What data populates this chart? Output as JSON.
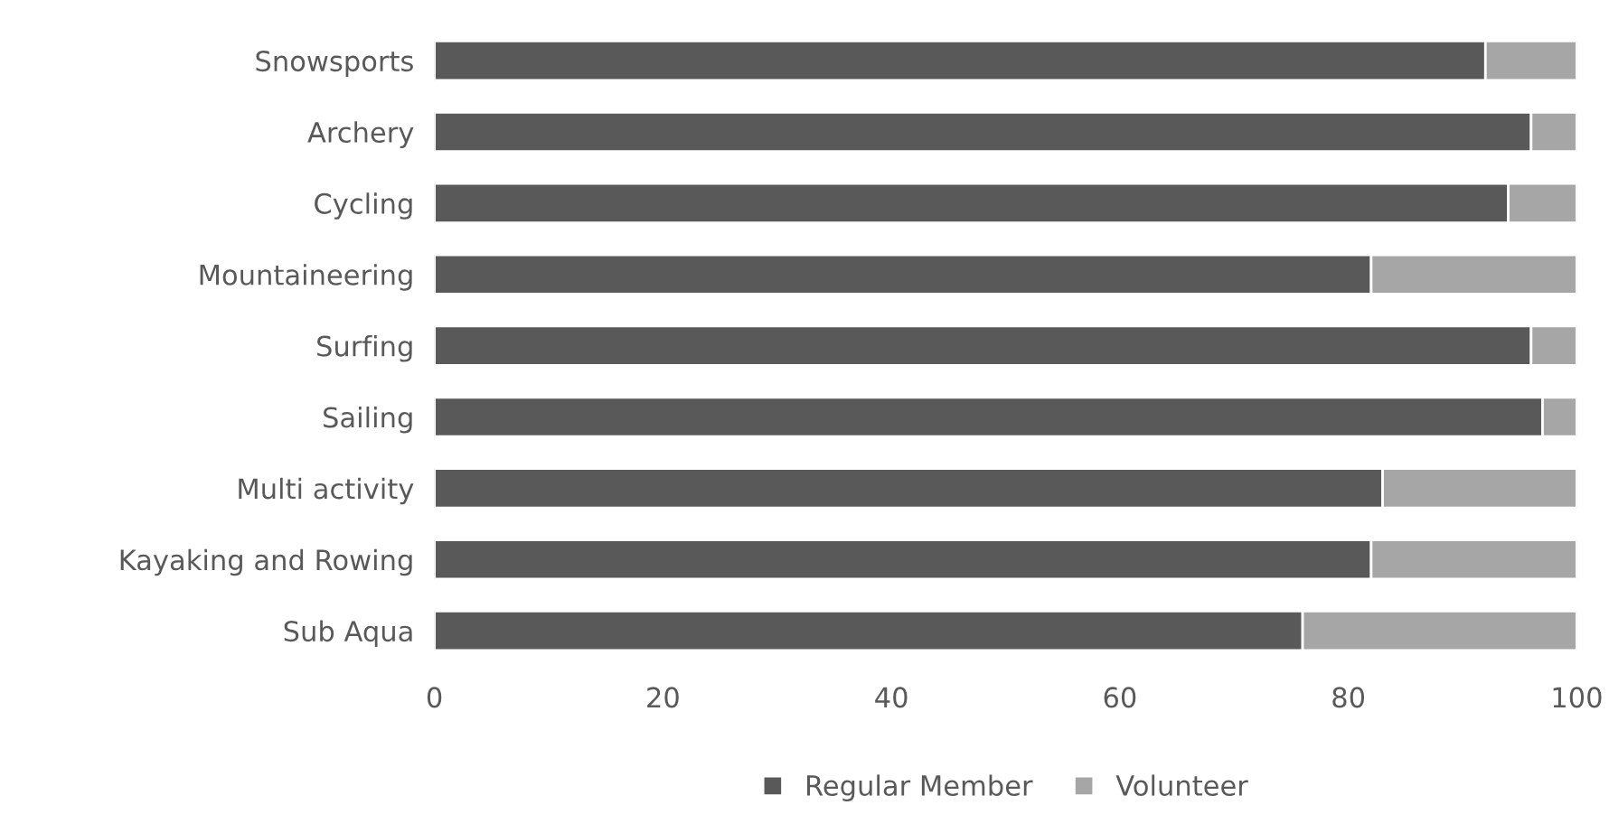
{
  "chart_data": {
    "type": "bar",
    "orientation": "horizontal",
    "stacked": true,
    "categories": [
      "Snowsports",
      "Archery",
      "Cycling",
      "Mountaineering",
      "Surfing",
      "Sailing",
      "Multi activity",
      "Kayaking and Rowing",
      "Sub Aqua"
    ],
    "series": [
      {
        "name": "Regular Member",
        "color": "#595959",
        "values": [
          92,
          96,
          94,
          82,
          96,
          97,
          83,
          82,
          76
        ]
      },
      {
        "name": "Volunteer",
        "color": "#a6a6a6",
        "values": [
          8,
          4,
          6,
          18,
          4,
          3,
          17,
          18,
          24
        ]
      }
    ],
    "xlim": [
      0,
      100
    ],
    "xticks": [
      0,
      20,
      40,
      60,
      80,
      100
    ],
    "grid": false,
    "legend": "bottom"
  }
}
